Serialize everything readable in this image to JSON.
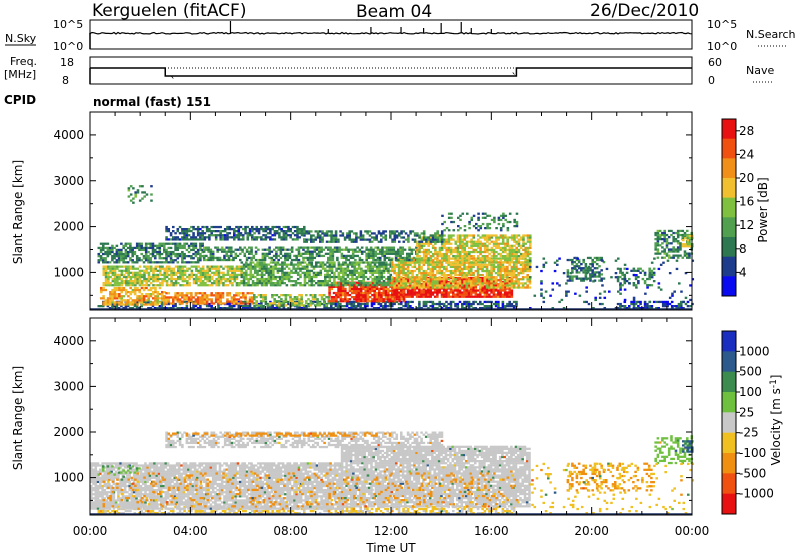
{
  "header": {
    "station": "Kerguelen (fitACF)",
    "beam": "Beam 04",
    "date": "26/Dec/2010"
  },
  "nsky_panel": {
    "left_label": "N.Sky",
    "left_ticks": [
      "10^5",
      "10^0"
    ],
    "right_label": "N.Search",
    "right_ticks": [
      "10^5",
      "10^0"
    ]
  },
  "freq_panel": {
    "left_label_1": "Freq.",
    "left_label_2": "[MHz]",
    "left_ticks": [
      "18",
      "8"
    ],
    "right_label": "Nave",
    "right_ticks": [
      "60",
      "0"
    ]
  },
  "cpid": {
    "label": "CPID",
    "value": "normal (fast) 151"
  },
  "colors": {
    "power_scale": [
      "#0a0af0",
      "#1e3c8c",
      "#2d7850",
      "#50a050",
      "#80c040",
      "#f0c030",
      "#f09018",
      "#f05010",
      "#e81010"
    ],
    "velocity_scale": [
      "#1a2ec0",
      "#2d5a8c",
      "#3c8c50",
      "#70c040",
      "#c8c8c8",
      "#f0c020",
      "#f09010",
      "#f05010",
      "#e81010"
    ]
  },
  "chart_data": [
    {
      "type": "heatmap",
      "name": "power",
      "ylabel": "Slant Range [km]",
      "ylim": [
        180,
        4500
      ],
      "xlim_hours": [
        0,
        24
      ],
      "y_ticks": [
        "1000",
        "2000",
        "3000",
        "4000"
      ],
      "y_tick_values": [
        1000,
        2000,
        3000,
        4000
      ],
      "colorbar_label": "Power [dB]",
      "colorbar_ticks": [
        "4",
        "8",
        "12",
        "16",
        "20",
        "24",
        "28"
      ],
      "colorbar_range": [
        0,
        30
      ],
      "regions": [
        {
          "t": [
            0.3,
            17.0
          ],
          "r": [
            200,
            340
          ],
          "v": 6,
          "dens": 0.6
        },
        {
          "t": [
            21.0,
            24.0
          ],
          "r": [
            200,
            380
          ],
          "v": 5,
          "dens": 0.5
        },
        {
          "t": [
            0.4,
            3.0
          ],
          "r": [
            280,
            650
          ],
          "v": 20,
          "dens": 0.7
        },
        {
          "t": [
            3.0,
            6.5
          ],
          "r": [
            300,
            550
          ],
          "v": 22,
          "dens": 0.7
        },
        {
          "t": [
            6.5,
            9.5
          ],
          "r": [
            260,
            500
          ],
          "v": 14,
          "dens": 0.6
        },
        {
          "t": [
            9.5,
            12.5
          ],
          "r": [
            350,
            800
          ],
          "v": 26,
          "dens": 0.85
        },
        {
          "t": [
            12.0,
            16.8
          ],
          "r": [
            450,
            900
          ],
          "v": 27,
          "dens": 0.9
        },
        {
          "t": [
            0.5,
            6.0
          ],
          "r": [
            700,
            1150
          ],
          "v": 16,
          "dens": 0.75
        },
        {
          "t": [
            6.0,
            12.0
          ],
          "r": [
            700,
            1200
          ],
          "v": 12,
          "dens": 0.7
        },
        {
          "t": [
            12.0,
            17.5
          ],
          "r": [
            650,
            1300
          ],
          "v": 18,
          "dens": 0.75
        },
        {
          "t": [
            0.3,
            4.5
          ],
          "r": [
            1200,
            1650
          ],
          "v": 9,
          "dens": 0.65
        },
        {
          "t": [
            4.5,
            13.0
          ],
          "r": [
            1250,
            1550
          ],
          "v": 10,
          "dens": 0.6
        },
        {
          "t": [
            13.0,
            17.5
          ],
          "r": [
            1200,
            1800
          ],
          "v": 17,
          "dens": 0.7
        },
        {
          "t": [
            3.0,
            8.5
          ],
          "r": [
            1700,
            2000
          ],
          "v": 7,
          "dens": 0.65
        },
        {
          "t": [
            8.5,
            14.0
          ],
          "r": [
            1650,
            1900
          ],
          "v": 8,
          "dens": 0.55
        },
        {
          "t": [
            14.0,
            17.0
          ],
          "r": [
            1900,
            2300
          ],
          "v": 9,
          "dens": 0.3
        },
        {
          "t": [
            19.0,
            20.5
          ],
          "r": [
            800,
            1300
          ],
          "v": 8,
          "dens": 0.5
        },
        {
          "t": [
            21.0,
            22.5
          ],
          "r": [
            700,
            1100
          ],
          "v": 9,
          "dens": 0.4
        },
        {
          "t": [
            22.5,
            24.0
          ],
          "r": [
            1300,
            1900
          ],
          "v": 10,
          "dens": 0.55
        },
        {
          "t": [
            23.6,
            24.0
          ],
          "r": [
            1550,
            1800
          ],
          "v": 15,
          "dens": 0.8
        },
        {
          "t": [
            17.5,
            24.0
          ],
          "r": [
            200,
            1300
          ],
          "v": 6,
          "dens": 0.08
        },
        {
          "t": [
            1.5,
            2.5
          ],
          "r": [
            2500,
            2900
          ],
          "v": 10,
          "dens": 0.15
        }
      ]
    },
    {
      "type": "heatmap",
      "name": "velocity",
      "ylabel": "Slant Range [km]",
      "ylim": [
        180,
        4500
      ],
      "xlim_hours": [
        0,
        24
      ],
      "y_ticks": [
        "1000",
        "2000",
        "3000",
        "4000"
      ],
      "y_tick_values": [
        1000,
        2000,
        3000,
        4000
      ],
      "xlabel": "Time UT",
      "x_ticks": [
        "00:00",
        "04:00",
        "08:00",
        "12:00",
        "16:00",
        "20:00",
        "00:00"
      ],
      "x_tick_values": [
        0,
        4,
        8,
        12,
        16,
        20,
        24
      ],
      "colorbar_label": "Velocity [m s^-1]",
      "colorbar_ticks": [
        "1000",
        "500",
        "100",
        "25",
        "-25",
        "-100",
        "-500",
        "-1000"
      ],
      "regions": [
        {
          "t": [
            0.3,
            17.0
          ],
          "r": [
            200,
            340
          ],
          "v": -25,
          "dens": 0.5
        },
        {
          "t": [
            0.0,
            10.0
          ],
          "r": [
            300,
            1300
          ],
          "v": 0,
          "dens": 0.85
        },
        {
          "t": [
            10.0,
            17.5
          ],
          "r": [
            350,
            1700
          ],
          "v": 0,
          "dens": 0.85
        },
        {
          "t": [
            0.5,
            17.0
          ],
          "r": [
            350,
            1100
          ],
          "v": -150,
          "dens": 0.12
        },
        {
          "t": [
            3.0,
            14.0
          ],
          "r": [
            1650,
            2000
          ],
          "v": 0,
          "dens": 0.55
        },
        {
          "t": [
            3.0,
            12.0
          ],
          "r": [
            1900,
            1980
          ],
          "v": -300,
          "dens": 0.4
        },
        {
          "t": [
            19.0,
            22.5
          ],
          "r": [
            700,
            1300
          ],
          "v": -120,
          "dens": 0.3
        },
        {
          "t": [
            22.5,
            24.0
          ],
          "r": [
            1300,
            1900
          ],
          "v": 60,
          "dens": 0.4
        },
        {
          "t": [
            23.6,
            24.0
          ],
          "r": [
            1550,
            1800
          ],
          "v": 600,
          "dens": 0.8
        },
        {
          "t": [
            0.3,
            2.0
          ],
          "r": [
            1000,
            1250
          ],
          "v": 80,
          "dens": 0.2
        },
        {
          "t": [
            17.5,
            24.0
          ],
          "r": [
            200,
            1300
          ],
          "v": -60,
          "dens": 0.06
        }
      ]
    }
  ]
}
